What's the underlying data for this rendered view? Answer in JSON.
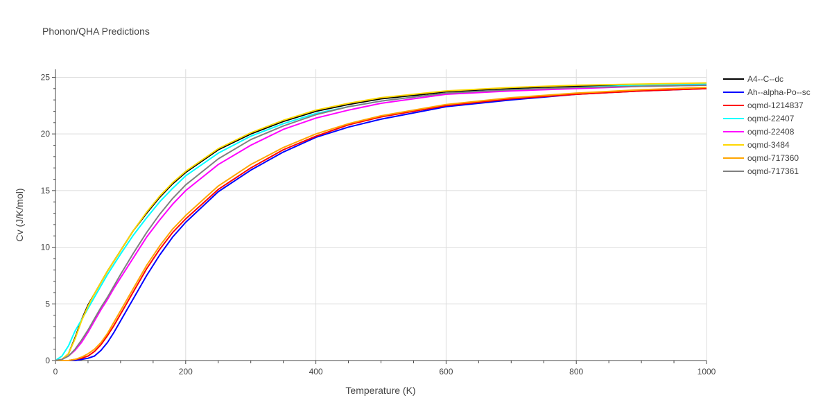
{
  "chart_data": {
    "type": "line",
    "title": "Phonon/QHA Predictions",
    "xlabel": "Temperature (K)",
    "ylabel": "Cv (J/K/mol)",
    "xlim": [
      0,
      1000
    ],
    "ylim": [
      0,
      25.7
    ],
    "xticks": [
      0,
      200,
      400,
      600,
      800,
      1000
    ],
    "xtick_labels": [
      "0",
      "200",
      "400",
      "600",
      "800",
      "1000"
    ],
    "yticks": [
      0,
      5,
      10,
      15,
      20,
      25
    ],
    "ytick_labels": [
      "0",
      "5",
      "10",
      "15",
      "20",
      "25"
    ],
    "grid": true,
    "legend_position": "right",
    "x": [
      0,
      10,
      20,
      30,
      40,
      50,
      60,
      70,
      80,
      90,
      100,
      120,
      140,
      160,
      180,
      200,
      250,
      300,
      350,
      400,
      450,
      500,
      600,
      700,
      800,
      900,
      1000
    ],
    "series": [
      {
        "name": "A4--C--dc",
        "color": "#000000",
        "values": [
          0,
          0.1,
          0.6,
          2.0,
          3.6,
          4.9,
          5.9,
          6.9,
          7.9,
          8.8,
          9.7,
          11.5,
          13.0,
          14.4,
          15.6,
          16.6,
          18.6,
          20.0,
          21.1,
          22.0,
          22.6,
          23.1,
          23.7,
          24.0,
          24.2,
          24.3,
          24.4
        ]
      },
      {
        "name": "Ah--alpha-Po--sc",
        "color": "#0000ff",
        "values": [
          0,
          0,
          0,
          0,
          0.1,
          0.2,
          0.4,
          0.9,
          1.6,
          2.5,
          3.5,
          5.5,
          7.5,
          9.3,
          10.9,
          12.2,
          14.9,
          16.8,
          18.4,
          19.7,
          20.6,
          21.3,
          22.4,
          23.0,
          23.5,
          23.8,
          24.0
        ]
      },
      {
        "name": "oqmd-1214837",
        "color": "#ff0000",
        "values": [
          0,
          0,
          0,
          0.1,
          0.2,
          0.4,
          0.8,
          1.4,
          2.2,
          3.1,
          4.1,
          6.1,
          8.1,
          9.8,
          11.3,
          12.5,
          15.1,
          17.0,
          18.6,
          19.8,
          20.8,
          21.5,
          22.5,
          23.1,
          23.5,
          23.8,
          24.0
        ]
      },
      {
        "name": "oqmd-22407",
        "color": "#00ffff",
        "values": [
          0,
          0.4,
          1.3,
          2.6,
          3.6,
          4.6,
          5.6,
          6.6,
          7.6,
          8.5,
          9.4,
          11.1,
          12.6,
          14.0,
          15.2,
          16.3,
          18.3,
          19.8,
          20.9,
          21.8,
          22.4,
          22.9,
          23.6,
          23.9,
          24.1,
          24.3,
          24.4
        ]
      },
      {
        "name": "oqmd-22408",
        "color": "#ff00ff",
        "values": [
          0,
          0.1,
          0.4,
          0.9,
          1.6,
          2.5,
          3.5,
          4.5,
          5.4,
          6.4,
          7.3,
          9.1,
          10.9,
          12.4,
          13.8,
          15.0,
          17.3,
          19.0,
          20.4,
          21.4,
          22.1,
          22.7,
          23.5,
          23.8,
          24.0,
          24.2,
          24.3
        ]
      },
      {
        "name": "oqmd-3484",
        "color": "#ffd700",
        "values": [
          0,
          0.1,
          0.6,
          1.9,
          3.5,
          4.8,
          5.9,
          6.9,
          7.9,
          8.8,
          9.7,
          11.5,
          13.1,
          14.5,
          15.7,
          16.7,
          18.7,
          20.1,
          21.2,
          22.1,
          22.7,
          23.2,
          23.8,
          24.1,
          24.3,
          24.4,
          24.5
        ]
      },
      {
        "name": "oqmd-717360",
        "color": "#ffa500",
        "values": [
          0,
          0,
          0,
          0.1,
          0.3,
          0.6,
          1.0,
          1.6,
          2.4,
          3.4,
          4.4,
          6.4,
          8.4,
          10.1,
          11.6,
          12.8,
          15.4,
          17.3,
          18.8,
          20.0,
          20.9,
          21.6,
          22.6,
          23.2,
          23.6,
          23.9,
          24.1
        ]
      },
      {
        "name": "oqmd-717361",
        "color": "#808080",
        "values": [
          0,
          0.1,
          0.4,
          1.0,
          1.8,
          2.7,
          3.7,
          4.7,
          5.6,
          6.6,
          7.6,
          9.5,
          11.3,
          12.9,
          14.3,
          15.5,
          17.8,
          19.5,
          20.7,
          21.7,
          22.4,
          22.9,
          23.6,
          23.9,
          24.1,
          24.2,
          24.3
        ]
      }
    ]
  }
}
